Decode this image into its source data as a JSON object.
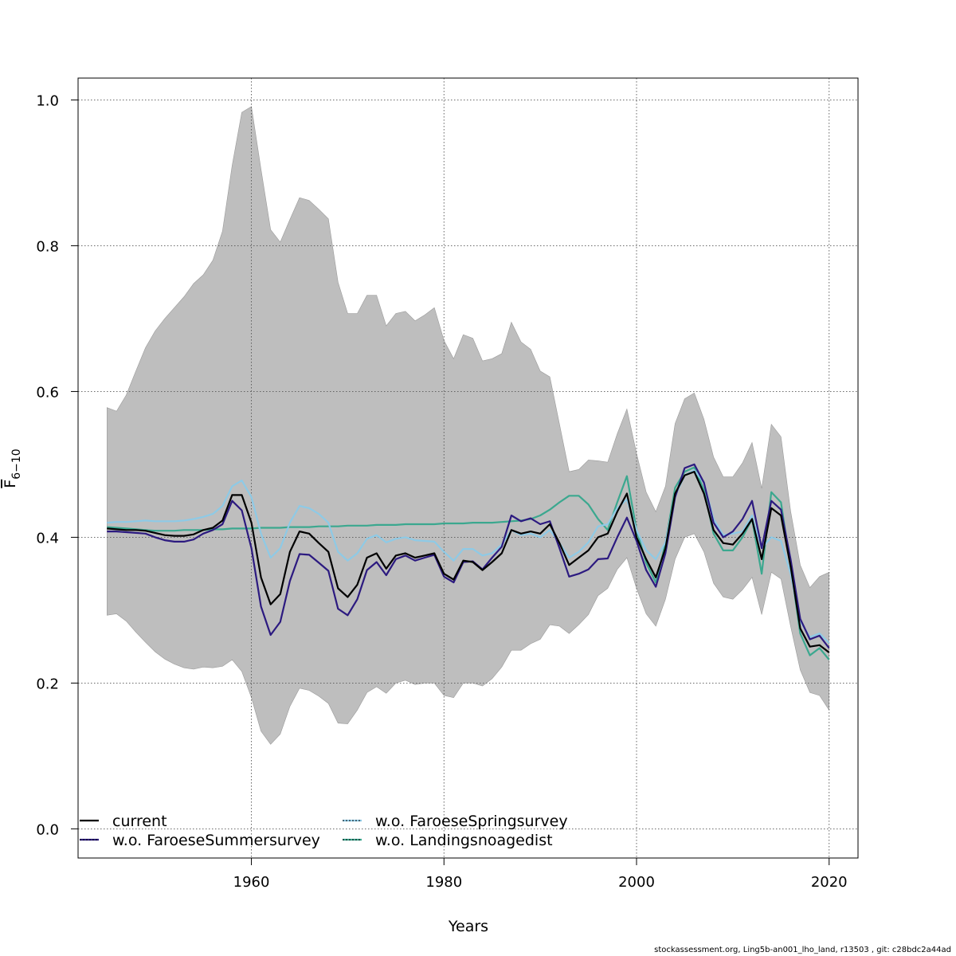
{
  "chart_data": {
    "type": "line",
    "xlabel": "Years",
    "ylabel": "F",
    "ylabel_subscript": "6−10",
    "xlim": [
      1942,
      2023
    ],
    "ylim": [
      -0.04,
      1.03
    ],
    "x_ticks": [
      1960,
      1980,
      2000,
      2020
    ],
    "y_ticks": [
      0.0,
      0.2,
      0.4,
      0.6,
      0.8,
      1.0
    ],
    "x_tick_labels": [
      "1960",
      "1980",
      "2000",
      "2020"
    ],
    "y_tick_labels": [
      "0.0",
      "0.2",
      "0.4",
      "0.6",
      "0.8",
      "1.0"
    ],
    "grid": true,
    "legend_position": "bottom-left",
    "years": [
      1945,
      1946,
      1947,
      1948,
      1949,
      1950,
      1951,
      1952,
      1953,
      1954,
      1955,
      1956,
      1957,
      1958,
      1959,
      1960,
      1961,
      1962,
      1963,
      1964,
      1965,
      1966,
      1967,
      1968,
      1969,
      1970,
      1971,
      1972,
      1973,
      1974,
      1975,
      1976,
      1977,
      1978,
      1979,
      1980,
      1981,
      1982,
      1983,
      1984,
      1985,
      1986,
      1987,
      1988,
      1989,
      1990,
      1991,
      1992,
      1993,
      1994,
      1995,
      1996,
      1997,
      1998,
      1999,
      2000,
      2001,
      2002,
      2003,
      2004,
      2005,
      2006,
      2007,
      2008,
      2009,
      2010,
      2011,
      2012,
      2013,
      2014,
      2015,
      2016,
      2017,
      2018,
      2019,
      2020
    ],
    "band": {
      "color": "#bebebe",
      "upper": [
        0.578,
        0.573,
        0.595,
        0.628,
        0.66,
        0.683,
        0.7,
        0.715,
        0.73,
        0.748,
        0.76,
        0.78,
        0.82,
        0.91,
        0.983,
        0.991,
        0.905,
        0.822,
        0.805,
        0.836,
        0.866,
        0.862,
        0.85,
        0.837,
        0.75,
        0.707,
        0.707,
        0.732,
        0.732,
        0.69,
        0.707,
        0.71,
        0.697,
        0.705,
        0.715,
        0.67,
        0.645,
        0.678,
        0.673,
        0.642,
        0.645,
        0.652,
        0.695,
        0.668,
        0.658,
        0.628,
        0.62,
        0.555,
        0.49,
        0.493,
        0.506,
        0.505,
        0.503,
        0.542,
        0.576,
        0.515,
        0.462,
        0.435,
        0.47,
        0.556,
        0.59,
        0.598,
        0.562,
        0.51,
        0.483,
        0.483,
        0.502,
        0.53,
        0.467,
        0.555,
        0.538,
        0.436,
        0.362,
        0.331,
        0.346,
        0.352
      ],
      "lower": [
        0.293,
        0.295,
        0.285,
        0.27,
        0.256,
        0.243,
        0.233,
        0.226,
        0.221,
        0.219,
        0.222,
        0.221,
        0.223,
        0.232,
        0.216,
        0.18,
        0.134,
        0.116,
        0.13,
        0.168,
        0.193,
        0.19,
        0.182,
        0.172,
        0.145,
        0.144,
        0.163,
        0.187,
        0.195,
        0.186,
        0.2,
        0.204,
        0.198,
        0.2,
        0.2,
        0.183,
        0.18,
        0.2,
        0.2,
        0.196,
        0.206,
        0.222,
        0.245,
        0.245,
        0.254,
        0.26,
        0.28,
        0.278,
        0.268,
        0.28,
        0.294,
        0.32,
        0.33,
        0.356,
        0.372,
        0.33,
        0.295,
        0.278,
        0.315,
        0.37,
        0.4,
        0.405,
        0.38,
        0.337,
        0.318,
        0.315,
        0.328,
        0.345,
        0.294,
        0.352,
        0.343,
        0.278,
        0.218,
        0.187,
        0.183,
        0.163
      ]
    },
    "series": [
      {
        "name": "current",
        "color": "#000000",
        "dashed_overlay": false,
        "values": [
          0.412,
          0.411,
          0.41,
          0.41,
          0.409,
          0.406,
          0.403,
          0.402,
          0.402,
          0.404,
          0.41,
          0.413,
          0.423,
          0.458,
          0.458,
          0.42,
          0.345,
          0.308,
          0.322,
          0.38,
          0.408,
          0.405,
          0.392,
          0.38,
          0.33,
          0.318,
          0.335,
          0.372,
          0.378,
          0.357,
          0.375,
          0.378,
          0.372,
          0.375,
          0.378,
          0.35,
          0.342,
          0.368,
          0.366,
          0.355,
          0.366,
          0.378,
          0.41,
          0.405,
          0.408,
          0.405,
          0.418,
          0.392,
          0.362,
          0.372,
          0.382,
          0.4,
          0.405,
          0.435,
          0.46,
          0.4,
          0.37,
          0.345,
          0.385,
          0.46,
          0.485,
          0.49,
          0.46,
          0.41,
          0.392,
          0.39,
          0.405,
          0.425,
          0.37,
          0.44,
          0.43,
          0.36,
          0.275,
          0.25,
          0.252,
          0.242
        ]
      },
      {
        "name": "w.o. FaroeseSummersurvey",
        "color": "#2c1a80",
        "dashed_overlay": true,
        "values": [
          0.408,
          0.408,
          0.407,
          0.406,
          0.405,
          0.4,
          0.396,
          0.394,
          0.394,
          0.397,
          0.405,
          0.41,
          0.418,
          0.45,
          0.437,
          0.385,
          0.305,
          0.266,
          0.284,
          0.34,
          0.377,
          0.376,
          0.365,
          0.354,
          0.302,
          0.293,
          0.315,
          0.355,
          0.366,
          0.348,
          0.37,
          0.375,
          0.368,
          0.372,
          0.376,
          0.346,
          0.338,
          0.366,
          0.367,
          0.356,
          0.372,
          0.387,
          0.43,
          0.422,
          0.426,
          0.418,
          0.422,
          0.385,
          0.346,
          0.35,
          0.356,
          0.37,
          0.371,
          0.4,
          0.427,
          0.395,
          0.355,
          0.332,
          0.378,
          0.455,
          0.495,
          0.5,
          0.475,
          0.42,
          0.4,
          0.408,
          0.425,
          0.45,
          0.385,
          0.45,
          0.438,
          0.37,
          0.288,
          0.26,
          0.265,
          0.248
        ]
      },
      {
        "name": "w.o. FaroeseSpringsurvey",
        "color": "#8ecae6",
        "dashed_overlay": true,
        "values": [
          0.42,
          0.421,
          0.421,
          0.422,
          0.423,
          0.422,
          0.422,
          0.422,
          0.423,
          0.425,
          0.428,
          0.432,
          0.443,
          0.47,
          0.478,
          0.455,
          0.405,
          0.372,
          0.385,
          0.42,
          0.443,
          0.44,
          0.432,
          0.42,
          0.38,
          0.368,
          0.378,
          0.398,
          0.403,
          0.393,
          0.398,
          0.4,
          0.396,
          0.395,
          0.394,
          0.38,
          0.368,
          0.384,
          0.384,
          0.375,
          0.378,
          0.39,
          0.41,
          0.403,
          0.405,
          0.4,
          0.41,
          0.392,
          0.372,
          0.38,
          0.393,
          0.415,
          0.418,
          0.44,
          0.452,
          0.41,
          0.382,
          0.37,
          0.393,
          0.457,
          0.485,
          0.492,
          0.475,
          0.425,
          0.403,
          0.405,
          0.408,
          0.43,
          0.385,
          0.4,
          0.395,
          0.35,
          0.285,
          0.263,
          0.268,
          0.255
        ]
      },
      {
        "name": "w.o. Landingsnoagedist",
        "color": "#3ba88f",
        "dashed_overlay": true,
        "values": [
          0.414,
          0.413,
          0.412,
          0.411,
          0.41,
          0.409,
          0.409,
          0.409,
          0.41,
          0.41,
          0.41,
          0.411,
          0.411,
          0.412,
          0.412,
          0.412,
          0.413,
          0.413,
          0.413,
          0.414,
          0.414,
          0.414,
          0.415,
          0.415,
          0.415,
          0.416,
          0.416,
          0.416,
          0.417,
          0.417,
          0.417,
          0.418,
          0.418,
          0.418,
          0.418,
          0.419,
          0.419,
          0.419,
          0.42,
          0.42,
          0.42,
          0.421,
          0.422,
          0.423,
          0.425,
          0.43,
          0.438,
          0.448,
          0.457,
          0.457,
          0.445,
          0.425,
          0.41,
          0.448,
          0.484,
          0.41,
          0.365,
          0.338,
          0.392,
          0.468,
          0.49,
          0.496,
          0.465,
          0.405,
          0.382,
          0.382,
          0.4,
          0.425,
          0.35,
          0.462,
          0.448,
          0.36,
          0.268,
          0.238,
          0.248,
          0.232
        ]
      }
    ]
  },
  "footer": "stockassessment.org, Ling5b-an001_lho_land, r13503 , git: c28bdc2a44ad"
}
